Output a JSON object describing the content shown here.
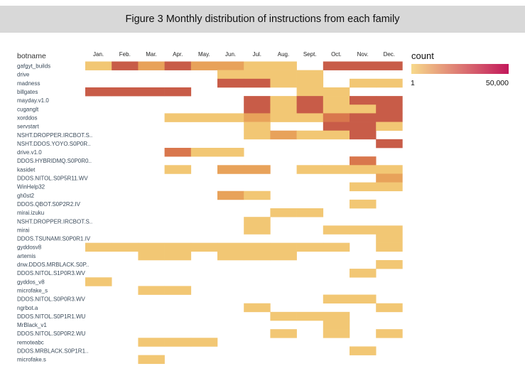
{
  "figure_title": "Figure 3 Monthly distribution of instructions from each family",
  "chart_data": {
    "type": "heatmap",
    "row_axis_title": "botname",
    "months": [
      "Jan.",
      "Feb.",
      "Mar.",
      "Apr.",
      "May.",
      "Jun.",
      "Jul.",
      "Aug.",
      "Sept.",
      "Oct.",
      "Nov.",
      "Dec."
    ],
    "rows": [
      "gafgyt_builds",
      "drive",
      "madness",
      "billgates",
      "mayday.v1.0",
      "cuganglt",
      "xorddos",
      "servstart",
      "NSHT.DROPPER.IRCBOT.S..",
      "NSHT.DDOS.YOYO.S0P0R..",
      "drive.v1.0",
      "DDOS.HYBRIDMQ.S0P0R0..",
      "kasidet",
      "DDOS.NITOL.S0P5R11.WV",
      "WinHelp32",
      "gh0st2",
      "DDOS.QBOT.S0P2R2.IV",
      "mirai.izuku",
      "NSHT.DROPPER.IRCBOT.S..",
      "mirai",
      "DDOS.TSUNAMI.S0P0R1.IV",
      "gyddosv8",
      "artemis",
      "dnw.DDOS.MRBLACK.S0P..",
      "DDOS.NITOL.S1P0R3.WV",
      "gyddos_v8",
      "microfake_s",
      "DDOS.NITOL.S0P0R3.WV",
      "ngrbot.a",
      "DDOS.NITOL.S0P1R1.WU",
      "MrBlack_v1",
      "DDOS.NITOL.S0P0R2.WU",
      "remoteabc",
      "DDOS.MRBLACK.S0P1R1..",
      "microfake.s"
    ],
    "values": [
      [
        0.15,
        0.85,
        0.3,
        0.85,
        0.35,
        0.4,
        0.1,
        0.1,
        0.0,
        0.85,
        0.85,
        0.85
      ],
      [
        0,
        0,
        0,
        0,
        0,
        0.2,
        0.1,
        0.15,
        0.1,
        0,
        0,
        0
      ],
      [
        0,
        0,
        0,
        0,
        0,
        0.85,
        0.85,
        0.15,
        0.15,
        0,
        0.15,
        0.15
      ],
      [
        0.85,
        0.85,
        0.85,
        0.85,
        0,
        0,
        0,
        0,
        0.15,
        0.15,
        0,
        0
      ],
      [
        0,
        0,
        0,
        0,
        0,
        0,
        0.85,
        0.15,
        0.85,
        0.2,
        0.85,
        0.85
      ],
      [
        0,
        0,
        0,
        0,
        0,
        0,
        0.85,
        0.15,
        0.85,
        0.15,
        0.15,
        0.85
      ],
      [
        0,
        0,
        0,
        0.1,
        0.1,
        0.1,
        0.45,
        0.2,
        0.1,
        0.65,
        0.85,
        0.7
      ],
      [
        0,
        0,
        0,
        0,
        0,
        0,
        0.15,
        0,
        0,
        0.85,
        0.85,
        0.15
      ],
      [
        0,
        0,
        0,
        0,
        0,
        0,
        0.15,
        0.45,
        0.15,
        0.2,
        0.85,
        0
      ],
      [
        0,
        0,
        0,
        0,
        0,
        0,
        0,
        0,
        0,
        0,
        0,
        0.7
      ],
      [
        0,
        0,
        0,
        0.65,
        0.15,
        0.15,
        0,
        0,
        0,
        0,
        0,
        0
      ],
      [
        0,
        0,
        0,
        0,
        0,
        0,
        0,
        0,
        0,
        0,
        0.6,
        0
      ],
      [
        0,
        0,
        0,
        0.15,
        0,
        0.3,
        0.45,
        0,
        0.15,
        0.15,
        0.15,
        0.2
      ],
      [
        0,
        0,
        0,
        0,
        0,
        0,
        0,
        0,
        0,
        0,
        0,
        0.4
      ],
      [
        0,
        0,
        0,
        0,
        0,
        0,
        0,
        0,
        0,
        0,
        0.2,
        0.2
      ],
      [
        0,
        0,
        0,
        0,
        0,
        0.3,
        0.2,
        0,
        0,
        0,
        0,
        0
      ],
      [
        0,
        0,
        0,
        0,
        0,
        0,
        0,
        0,
        0,
        0,
        0.15,
        0
      ],
      [
        0,
        0,
        0,
        0,
        0,
        0,
        0,
        0.15,
        0.15,
        0,
        0,
        0
      ],
      [
        0,
        0,
        0,
        0,
        0,
        0,
        0.15,
        0,
        0,
        0,
        0,
        0
      ],
      [
        0,
        0,
        0,
        0,
        0,
        0,
        0.15,
        0,
        0,
        0.15,
        0.15,
        0.2
      ],
      [
        0,
        0,
        0,
        0,
        0,
        0,
        0,
        0,
        0,
        0,
        0,
        0.15
      ],
      [
        0.12,
        0.12,
        0.12,
        0.12,
        0.12,
        0.12,
        0.12,
        0.12,
        0.12,
        0.12,
        0,
        0.15
      ],
      [
        0,
        0,
        0.12,
        0.12,
        0,
        0.12,
        0.12,
        0.12,
        0,
        0,
        0,
        0
      ],
      [
        0,
        0,
        0,
        0,
        0,
        0,
        0,
        0,
        0,
        0,
        0,
        0.15
      ],
      [
        0,
        0,
        0,
        0,
        0,
        0,
        0,
        0,
        0,
        0,
        0.15,
        0
      ],
      [
        0.25,
        0,
        0,
        0,
        0,
        0,
        0,
        0,
        0,
        0,
        0,
        0
      ],
      [
        0,
        0,
        0.15,
        0.15,
        0,
        0,
        0,
        0,
        0,
        0,
        0,
        0
      ],
      [
        0,
        0,
        0,
        0,
        0,
        0,
        0,
        0,
        0,
        0.15,
        0.15,
        0
      ],
      [
        0,
        0,
        0,
        0,
        0,
        0,
        0.15,
        0,
        0,
        0,
        0,
        0.15
      ],
      [
        0,
        0,
        0,
        0,
        0,
        0,
        0,
        0.12,
        0.12,
        0.12,
        0,
        0
      ],
      [
        0,
        0,
        0,
        0,
        0,
        0,
        0,
        0,
        0,
        0.15,
        0,
        0
      ],
      [
        0,
        0,
        0,
        0,
        0,
        0,
        0,
        0.2,
        0,
        0.15,
        0,
        0.15
      ],
      [
        0,
        0,
        0.12,
        0.12,
        0.12,
        0,
        0,
        0,
        0,
        0,
        0,
        0
      ],
      [
        0,
        0,
        0,
        0,
        0,
        0,
        0,
        0,
        0,
        0,
        0.15,
        0
      ],
      [
        0,
        0,
        0.15,
        0,
        0,
        0,
        0,
        0,
        0,
        0,
        0,
        0
      ]
    ],
    "legend": {
      "title": "count",
      "min_label": "1",
      "max_label": "50,000",
      "min_color": "#f7d98b",
      "max_color": "#c2185b"
    },
    "color_stops": [
      "#f7de93",
      "#f2c774",
      "#e8a25a",
      "#d9774d",
      "#c85c48",
      "#b8484a"
    ]
  }
}
